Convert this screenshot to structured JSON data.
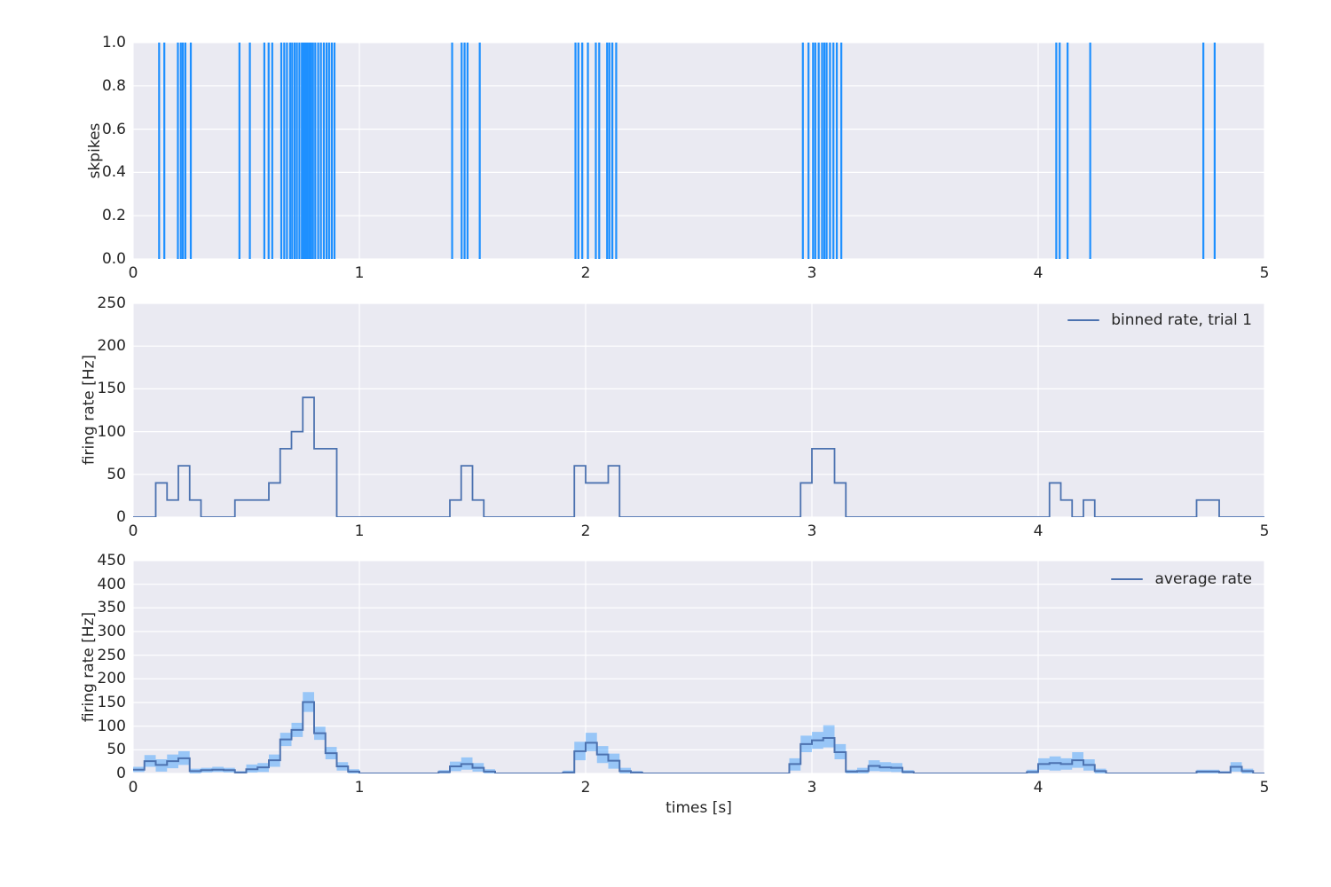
{
  "style": {
    "figure_bg": "#ffffff",
    "axes_bg": "#eaeaf2",
    "grid_color": "#ffffff",
    "spike_color": "#1e90ff",
    "line_color": "#4c72b0",
    "band_color": "#1e90ff",
    "band_opacity": 0.4,
    "text_color": "#262626"
  },
  "chart_data": [
    {
      "type": "scatter",
      "subtype": "event-raster",
      "title": "",
      "ylabel": "skpikes",
      "xlim": [
        0,
        5
      ],
      "ylim": [
        0,
        1
      ],
      "x_ticks": [
        0,
        1,
        2,
        3,
        4,
        5
      ],
      "x_tick_labels": [
        "0",
        "1",
        "2",
        "3",
        "4",
        "5"
      ],
      "y_ticks": [
        0,
        0.2,
        0.4,
        0.6,
        0.8,
        1.0
      ],
      "y_tick_labels": [
        "0.0",
        "0.2",
        "0.4",
        "0.6",
        "0.8",
        "1.0"
      ],
      "grid": true,
      "spike_times": [
        0.115,
        0.138,
        0.198,
        0.211,
        0.22,
        0.231,
        0.255,
        0.47,
        0.516,
        0.58,
        0.599,
        0.615,
        0.655,
        0.668,
        0.68,
        0.694,
        0.703,
        0.714,
        0.724,
        0.735,
        0.746,
        0.752,
        0.758,
        0.765,
        0.772,
        0.78,
        0.787,
        0.795,
        0.805,
        0.818,
        0.83,
        0.843,
        0.855,
        0.866,
        0.878,
        0.89,
        1.41,
        1.452,
        1.465,
        1.478,
        1.532,
        1.955,
        1.968,
        1.985,
        2.01,
        2.045,
        2.06,
        2.095,
        2.105,
        2.118,
        2.135,
        2.96,
        2.985,
        3.005,
        3.015,
        3.03,
        3.045,
        3.055,
        3.065,
        3.08,
        3.095,
        3.11,
        3.13,
        4.08,
        4.095,
        4.13,
        4.23,
        4.73,
        4.78
      ]
    },
    {
      "type": "line",
      "subtype": "step-post",
      "title": "",
      "ylabel": "firing rate [Hz]",
      "legend": "binned rate, trial 1",
      "legend_position": "upper right",
      "xlim": [
        0,
        5
      ],
      "ylim": [
        0,
        250
      ],
      "x_ticks": [
        0,
        1,
        2,
        3,
        4,
        5
      ],
      "x_tick_labels": [
        "0",
        "1",
        "2",
        "3",
        "4",
        "5"
      ],
      "y_ticks": [
        0,
        50,
        100,
        150,
        200,
        250
      ],
      "y_tick_labels": [
        "0",
        "50",
        "100",
        "150",
        "200",
        "250"
      ],
      "grid": true,
      "bin_width": 0.05,
      "bin_start": 0,
      "values": [
        0,
        0,
        40,
        20,
        60,
        20,
        0,
        0,
        0,
        20,
        20,
        20,
        40,
        80,
        100,
        140,
        80,
        80,
        0,
        0,
        0,
        0,
        0,
        0,
        0,
        0,
        0,
        0,
        20,
        60,
        20,
        0,
        0,
        0,
        0,
        0,
        0,
        0,
        0,
        60,
        40,
        40,
        60,
        0,
        0,
        0,
        0,
        0,
        0,
        0,
        0,
        0,
        0,
        0,
        0,
        0,
        0,
        0,
        0,
        40,
        80,
        80,
        40,
        0,
        0,
        0,
        0,
        0,
        0,
        0,
        0,
        0,
        0,
        0,
        0,
        0,
        0,
        0,
        0,
        0,
        0,
        40,
        20,
        0,
        20,
        0,
        0,
        0,
        0,
        0,
        0,
        0,
        0,
        0,
        20,
        20,
        0,
        0,
        0,
        0
      ]
    },
    {
      "type": "area",
      "subtype": "step-post-with-band",
      "title": "",
      "ylabel": "firing rate [Hz]",
      "xlabel": "times [s]",
      "legend": "average rate",
      "legend_position": "upper right",
      "xlim": [
        0,
        5
      ],
      "ylim": [
        0,
        450
      ],
      "x_ticks": [
        0,
        1,
        2,
        3,
        4,
        5
      ],
      "x_tick_labels": [
        "0",
        "1",
        "2",
        "3",
        "4",
        "5"
      ],
      "y_ticks": [
        0,
        50,
        100,
        150,
        200,
        250,
        300,
        350,
        400,
        450
      ],
      "y_tick_labels": [
        "0",
        "50",
        "100",
        "150",
        "200",
        "250",
        "300",
        "350",
        "400",
        "450"
      ],
      "grid": true,
      "bin_width": 0.05,
      "bin_start": 0,
      "mean": [
        8,
        26,
        18,
        26,
        32,
        5,
        7,
        8,
        7,
        2,
        9,
        13,
        28,
        72,
        92,
        151,
        85,
        43,
        15,
        4,
        0,
        0,
        0,
        0,
        0,
        0,
        0,
        3,
        15,
        20,
        12,
        4,
        0,
        0,
        0,
        0,
        0,
        0,
        2,
        47,
        65,
        40,
        27,
        5,
        2,
        0,
        0,
        0,
        0,
        0,
        0,
        0,
        0,
        0,
        0,
        0,
        0,
        0,
        20,
        62,
        70,
        75,
        45,
        4,
        5,
        16,
        13,
        12,
        3,
        0,
        0,
        0,
        0,
        0,
        0,
        0,
        0,
        0,
        0,
        3,
        20,
        22,
        20,
        28,
        18,
        5,
        0,
        0,
        0,
        0,
        0,
        0,
        0,
        0,
        4,
        4,
        2,
        14,
        5,
        0
      ],
      "band_lower": [
        3,
        14,
        4,
        11,
        18,
        0,
        2,
        3,
        2,
        0,
        2,
        3,
        14,
        58,
        77,
        130,
        71,
        30,
        6,
        0,
        0,
        0,
        0,
        0,
        0,
        0,
        0,
        0,
        5,
        8,
        4,
        0,
        0,
        0,
        0,
        0,
        0,
        0,
        0,
        28,
        47,
        22,
        10,
        0,
        0,
        0,
        0,
        0,
        0,
        0,
        0,
        0,
        0,
        0,
        0,
        0,
        0,
        0,
        6,
        45,
        52,
        55,
        30,
        0,
        0,
        5,
        4,
        3,
        0,
        0,
        0,
        0,
        0,
        0,
        0,
        0,
        0,
        0,
        0,
        0,
        8,
        6,
        8,
        12,
        6,
        0,
        0,
        0,
        0,
        0,
        0,
        0,
        0,
        0,
        0,
        0,
        0,
        4,
        0,
        0
      ],
      "band_upper": [
        14,
        39,
        30,
        40,
        47,
        10,
        12,
        14,
        12,
        5,
        19,
        22,
        40,
        86,
        107,
        172,
        99,
        56,
        24,
        9,
        0,
        0,
        0,
        0,
        0,
        0,
        0,
        7,
        25,
        34,
        22,
        9,
        0,
        0,
        0,
        0,
        0,
        0,
        6,
        67,
        86,
        58,
        42,
        12,
        5,
        0,
        0,
        0,
        0,
        0,
        0,
        0,
        0,
        0,
        0,
        0,
        0,
        0,
        32,
        80,
        88,
        102,
        62,
        8,
        12,
        28,
        24,
        22,
        7,
        0,
        0,
        0,
        0,
        0,
        0,
        0,
        0,
        0,
        0,
        8,
        32,
        36,
        32,
        45,
        30,
        10,
        0,
        0,
        0,
        0,
        0,
        0,
        0,
        0,
        8,
        8,
        5,
        24,
        10,
        0
      ]
    }
  ]
}
